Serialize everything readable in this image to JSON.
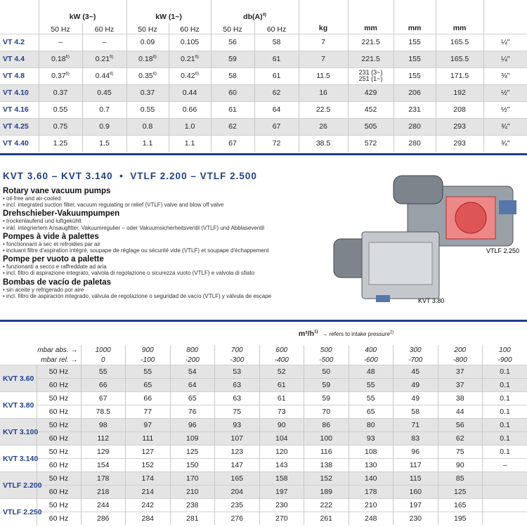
{
  "top_table": {
    "header": [
      {
        "text": "kW (3~)"
      },
      {
        "text": "kW (1~)"
      },
      {
        "text": "db(A)",
        "sup": "4)"
      },
      {
        "text": "kg"
      },
      {
        "text": "mm"
      },
      {
        "text": "mm"
      },
      {
        "text": "mm"
      }
    ],
    "subheader": [
      "50 Hz",
      "60 Hz",
      "50 Hz",
      "60 Hz",
      "50 Hz",
      "60 Hz"
    ],
    "rows": [
      [
        "VT 4.2",
        "–",
        "–",
        "0.09",
        "0.105",
        "56",
        "58",
        "7",
        "221.5",
        "155",
        "165.5",
        "¼\""
      ],
      [
        "VT 4.4",
        {
          "text": "0.18",
          "sup": "6)"
        },
        {
          "text": "0.21",
          "sup": "6)"
        },
        {
          "text": "0.18",
          "sup": "6)"
        },
        {
          "text": "0.21",
          "sup": "6)"
        },
        "59",
        "61",
        "7",
        "221.5",
        "155",
        "165.5",
        "¼\""
      ],
      [
        "VT 4.8",
        {
          "text": "0.37",
          "sup": "6)"
        },
        {
          "text": "0.44",
          "sup": "6)"
        },
        {
          "text": "0.35",
          "sup": "6)"
        },
        {
          "text": "0.42",
          "sup": "6)"
        },
        "58",
        "61",
        "11.5",
        [
          "231 (3~)",
          "251 (1~)"
        ],
        "155",
        "171.5",
        "⅜\""
      ],
      [
        "VT 4.10",
        "0.37",
        "0.45",
        "0.37",
        "0.44",
        "60",
        "62",
        "16",
        "429",
        "206",
        "192",
        "½\""
      ],
      [
        "VT 4.16",
        "0.55",
        "0.7",
        "0.55",
        "0.66",
        "61",
        "64",
        "22.5",
        "452",
        "231",
        "208",
        "½\""
      ],
      [
        "VT 4.25",
        "0.75",
        "0.9",
        "0.8",
        "1.0",
        "62",
        "67",
        "26",
        "505",
        "280",
        "293",
        "¾\""
      ],
      [
        "VT 4.40",
        "1.25",
        "1.5",
        "1.1",
        "1.1",
        "67",
        "72",
        "38.5",
        "572",
        "280",
        "293",
        "¾\""
      ]
    ]
  },
  "section": {
    "title": "KVT 3.60 – KVT 3.140  •  VTLF 2.200 – VTLF 2.500",
    "blocks": [
      {
        "heading": "Rotary vane vacuum pumps",
        "bullets": [
          "oil-free and air-cooled",
          "incl. integrated suction filter, vacuum regulating or relief (VTLF) valve and blow off valve"
        ]
      },
      {
        "heading": "Drehschieber-Vakuumpumpen",
        "bullets": [
          "trockenlaufend und luftgekühlt",
          "inkl. integriertem Ansaugfilter, Vakuumregulier – oder Vakuumsicherheitsventil (VTLF) und Abblaseventil"
        ]
      },
      {
        "heading": "Pompes à vide à palettes",
        "bullets": [
          "fonctionnant à sec et refroidies par air",
          "incluant filtre d'aspiration intégré, soupape de réglage ou sécurité vide (VTLF) et soupape d'échappement"
        ]
      },
      {
        "heading": "Pompe per vuoto a palette",
        "bullets": [
          "funzionanti a secco e raffreddate ad aria",
          "incl. filtro di aspirazione integrato, valvola di regolazione o sicurezza vuoto (VTLF) e valvola di sfiato"
        ]
      },
      {
        "heading": "Bombas de vacío de paletas",
        "bullets": [
          "sin aceite y refrigerado por aire",
          "incl. filtro de aspiración integrado, válvula de regolazione o seguridad de vacío (VTLF) y válvula de escape"
        ]
      }
    ],
    "image_labels": [
      "VTLF 2.250",
      "KVT 3.80"
    ]
  },
  "bottom_table": {
    "unit": {
      "text": "m³/h",
      "sup": "1)"
    },
    "unit_note": {
      "text": "→ refers to intake pressure",
      "sup": "2)"
    },
    "abs_label": "mbar abs. →",
    "rel_label": "mbar rel. →",
    "abs": [
      "1000",
      "900",
      "800",
      "700",
      "600",
      "500",
      "400",
      "300",
      "200",
      "100"
    ],
    "rel": [
      "0",
      "-100",
      "-200",
      "-300",
      "-400",
      "-500",
      "-600",
      "-700",
      "-800",
      "-900"
    ],
    "models": [
      {
        "name": "KVT 3.60",
        "rows": [
          {
            "hz": "50 Hz",
            "values": [
              "55",
              "55",
              "54",
              "53",
              "52",
              "50",
              "48",
              "45",
              "37",
              "0.1"
            ]
          },
          {
            "hz": "60 Hz",
            "values": [
              "66",
              "65",
              "64",
              "63",
              "61",
              "59",
              "55",
              "49",
              "37",
              "0.1"
            ]
          }
        ]
      },
      {
        "name": "KVT 3.80",
        "rows": [
          {
            "hz": "50 Hz",
            "values": [
              "67",
              "66",
              "65",
              "63",
              "61",
              "59",
              "55",
              "49",
              "38",
              "0.1"
            ]
          },
          {
            "hz": "60 Hz",
            "values": [
              "78.5",
              "77",
              "76",
              "75",
              "73",
              "70",
              "65",
              "58",
              "44",
              "0.1"
            ]
          }
        ]
      },
      {
        "name": "KVT 3.100",
        "rows": [
          {
            "hz": "50 Hz",
            "values": [
              "98",
              "97",
              "96",
              "93",
              "90",
              "86",
              "80",
              "71",
              "56",
              "0.1"
            ]
          },
          {
            "hz": "60 Hz",
            "values": [
              "112",
              "111",
              "109",
              "107",
              "104",
              "100",
              "93",
              "83",
              "62",
              "0.1"
            ]
          }
        ]
      },
      {
        "name": "KVT 3.140",
        "rows": [
          {
            "hz": "50 Hz",
            "values": [
              "129",
              "127",
              "125",
              "123",
              "120",
              "116",
              "108",
              "96",
              "75",
              "0.1"
            ]
          },
          {
            "hz": "60 Hz",
            "values": [
              "154",
              "152",
              "150",
              "147",
              "143",
              "138",
              "130",
              "117",
              "90",
              "–"
            ]
          }
        ]
      },
      {
        "name": "VTLF 2.200",
        "rows": [
          {
            "hz": "50 Hz",
            "values": [
              "178",
              "174",
              "170",
              "165",
              "158",
              "152",
              "140",
              "115",
              "85"
            ]
          },
          {
            "hz": "60 Hz",
            "values": [
              "218",
              "214",
              "210",
              "204",
              "197",
              "189",
              "178",
              "160",
              "125"
            ]
          }
        ]
      },
      {
        "name": "VTLF 2.250",
        "rows": [
          {
            "hz": "50 Hz",
            "values": [
              "244",
              "242",
              "238",
              "235",
              "230",
              "222",
              "210",
              "197",
              "165"
            ]
          },
          {
            "hz": "60 Hz",
            "values": [
              "286",
              "284",
              "281",
              "276",
              "270",
              "261",
              "248",
              "230",
              "195"
            ]
          }
        ]
      }
    ]
  }
}
